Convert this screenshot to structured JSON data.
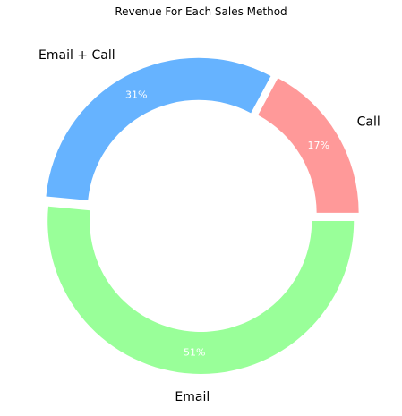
{
  "chart_data": {
    "type": "pie",
    "variant": "donut",
    "title": "Revenue For Each Sales Method",
    "categories": [
      "Call",
      "Email + Call",
      "Email"
    ],
    "values": [
      17,
      31,
      51
    ],
    "value_labels": [
      "17%",
      "31%",
      "51%"
    ],
    "colors": [
      "#ff9999",
      "#66b3ff",
      "#99ff99"
    ],
    "start_angle_deg": 0,
    "direction": "counterclockwise",
    "exploded": true,
    "legend": "none"
  }
}
